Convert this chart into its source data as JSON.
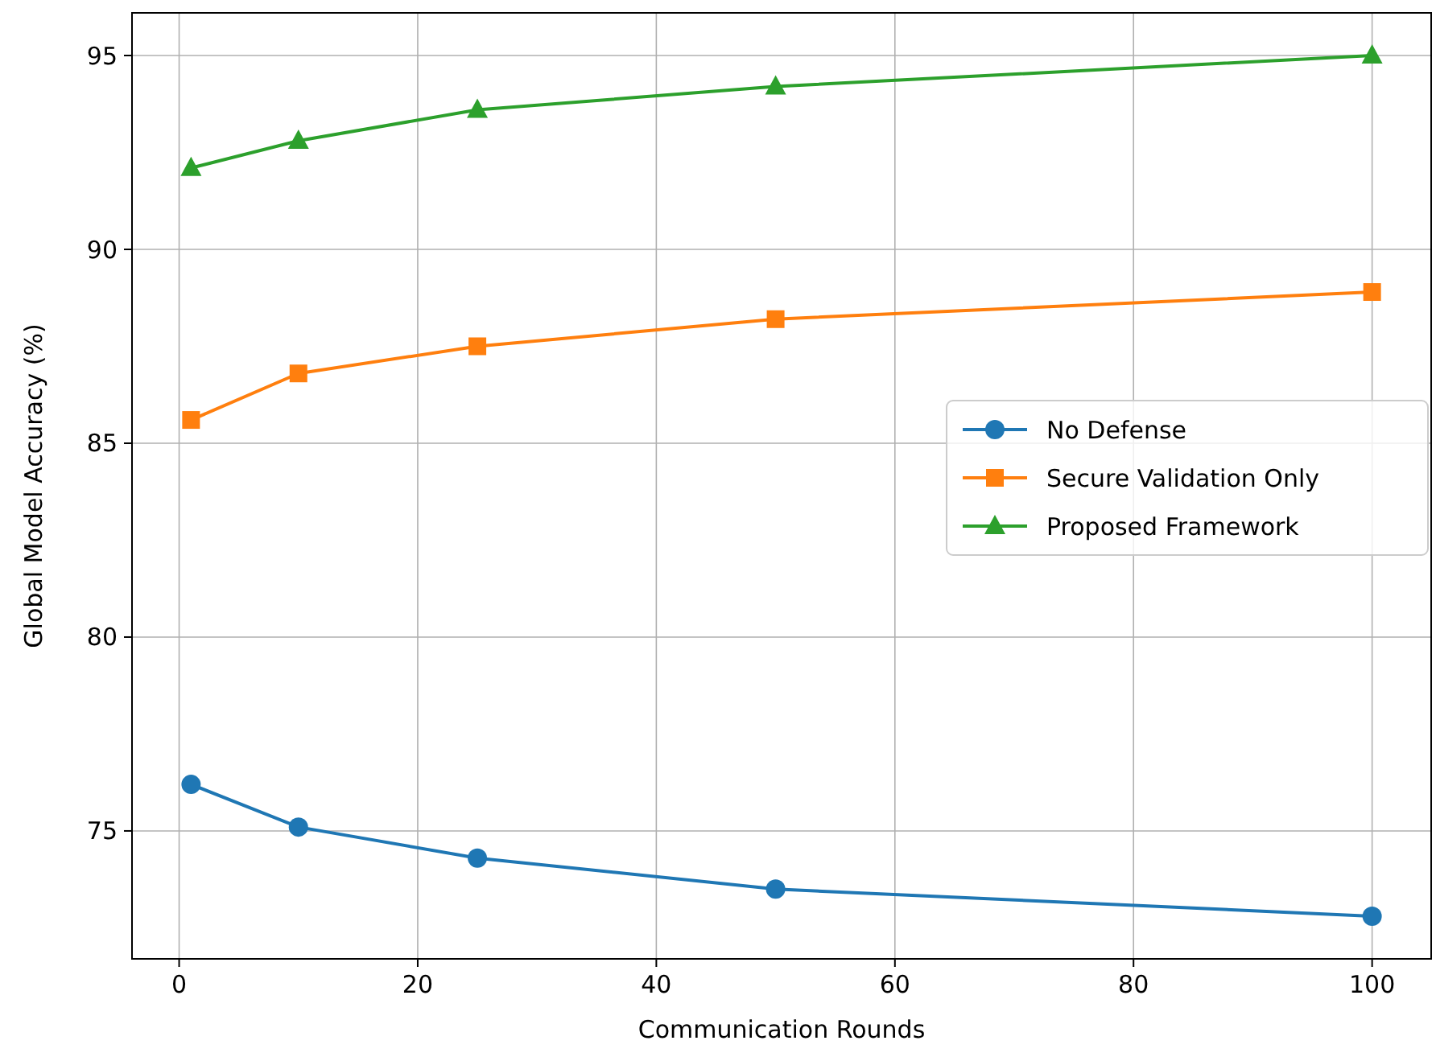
{
  "chart_data": {
    "type": "line",
    "xlabel": "Communication Rounds",
    "ylabel": "Global Model Accuracy (%)",
    "x": [
      1,
      10,
      25,
      50,
      100
    ],
    "series": [
      {
        "name": "No Defense",
        "color": "#1f77b4",
        "marker": "circle",
        "values": [
          76.2,
          75.1,
          74.3,
          73.5,
          72.8
        ]
      },
      {
        "name": "Secure Validation Only",
        "color": "#ff7f0e",
        "marker": "square",
        "values": [
          85.6,
          86.8,
          87.5,
          88.2,
          88.9
        ]
      },
      {
        "name": "Proposed Framework",
        "color": "#2ca02c",
        "marker": "triangle",
        "values": [
          92.1,
          92.8,
          93.6,
          94.2,
          95.0
        ]
      }
    ],
    "xlim": [
      -3.95,
      104.95
    ],
    "ylim": [
      71.7,
      96.1
    ],
    "xticks": [
      0,
      20,
      40,
      60,
      80,
      100
    ],
    "yticks": [
      75,
      80,
      85,
      90,
      95
    ],
    "grid": true,
    "legend": "center right",
    "line_style": "solid"
  }
}
